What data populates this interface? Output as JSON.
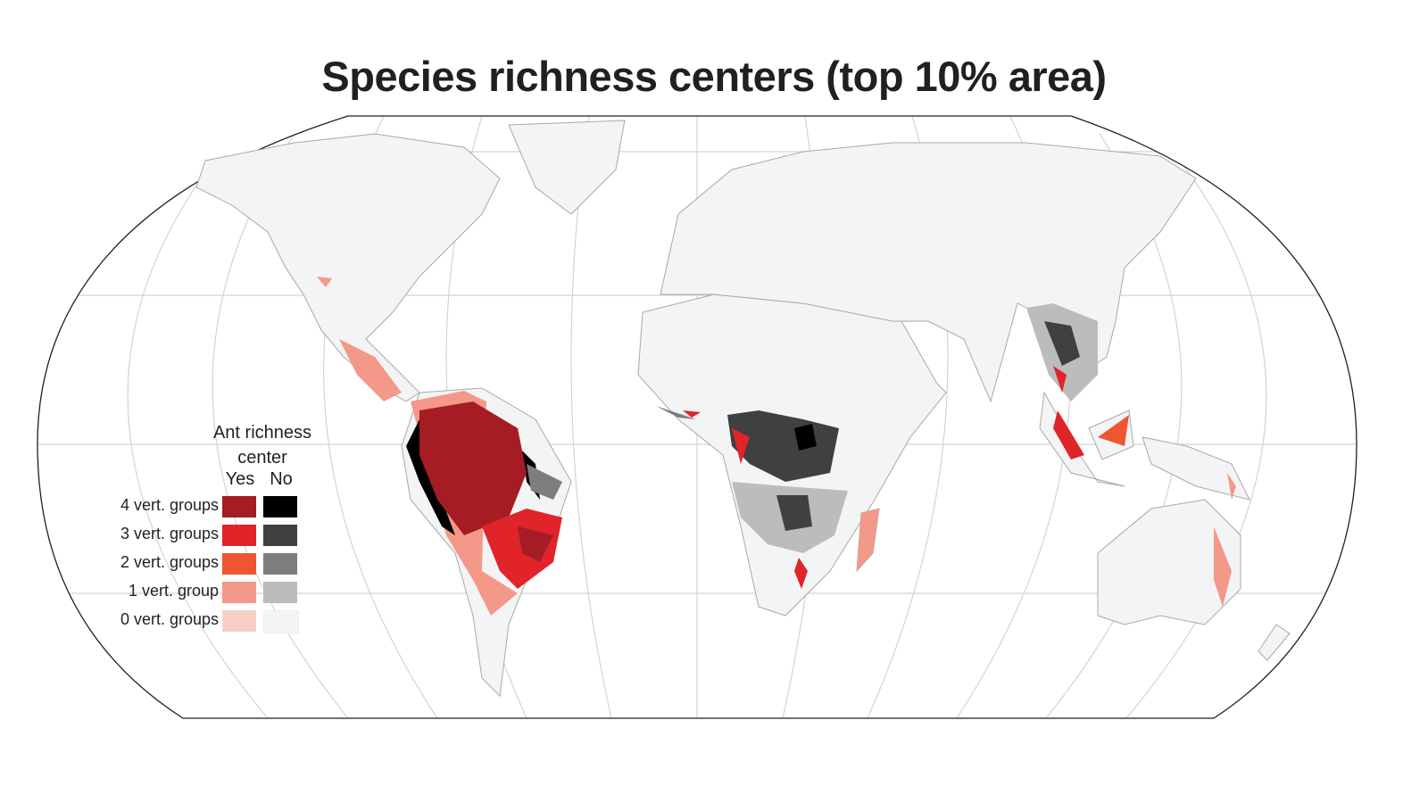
{
  "title": "Species richness centers (top 10% area)",
  "legend": {
    "title_line1": "Ant richness",
    "title_line2": "center",
    "col_yes": "Yes",
    "col_no": "No",
    "rows": [
      {
        "label": "4 vert. groups",
        "yes_color": "#a51c24",
        "no_color": "#000000"
      },
      {
        "label": "3 vert. groups",
        "yes_color": "#e0242a",
        "no_color": "#404040"
      },
      {
        "label": "2 vert. groups",
        "yes_color": "#ee5533",
        "no_color": "#7d7d7d"
      },
      {
        "label": "1 vert. group",
        "yes_color": "#f4988a",
        "no_color": "#bcbcbc"
      },
      {
        "label": "0 vert. groups",
        "yes_color": "#f8cfc6",
        "no_color": "#f5f5f5"
      }
    ]
  },
  "colors": {
    "land": "#f3f4f5",
    "border": "#a8a8a8",
    "graticule": "#d4d4d4"
  }
}
